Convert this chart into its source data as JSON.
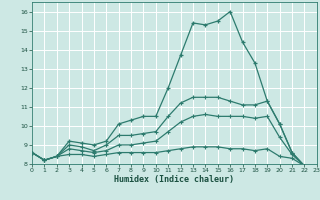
{
  "xlabel": "Humidex (Indice chaleur)",
  "background_color": "#cde8e4",
  "grid_color": "#ffffff",
  "line_color": "#2d7b6e",
  "x_values": [
    0,
    1,
    2,
    3,
    4,
    5,
    6,
    7,
    8,
    9,
    10,
    11,
    12,
    13,
    14,
    15,
    16,
    17,
    18,
    19,
    20,
    21,
    22,
    23
  ],
  "line1": [
    8.6,
    8.2,
    8.4,
    9.2,
    9.1,
    9.0,
    9.2,
    10.1,
    10.3,
    10.5,
    10.5,
    12.0,
    13.7,
    15.4,
    15.3,
    15.5,
    16.0,
    14.4,
    13.3,
    11.3,
    10.1,
    8.6,
    7.9,
    7.8
  ],
  "line2": [
    8.6,
    8.2,
    8.4,
    9.0,
    8.9,
    8.7,
    9.0,
    9.5,
    9.5,
    9.6,
    9.7,
    10.5,
    11.2,
    11.5,
    11.5,
    11.5,
    11.3,
    11.1,
    11.1,
    11.3,
    10.1,
    8.6,
    7.9,
    7.8
  ],
  "line3": [
    8.6,
    8.2,
    8.4,
    8.8,
    8.7,
    8.6,
    8.7,
    9.0,
    9.0,
    9.1,
    9.2,
    9.7,
    10.2,
    10.5,
    10.6,
    10.5,
    10.5,
    10.5,
    10.4,
    10.5,
    9.4,
    8.5,
    7.9,
    7.8
  ],
  "line4": [
    8.6,
    8.2,
    8.4,
    8.5,
    8.5,
    8.4,
    8.5,
    8.6,
    8.6,
    8.6,
    8.6,
    8.7,
    8.8,
    8.9,
    8.9,
    8.9,
    8.8,
    8.8,
    8.7,
    8.8,
    8.4,
    8.3,
    7.9,
    7.8
  ],
  "ylim": [
    8.0,
    16.5
  ],
  "xlim": [
    0,
    23
  ],
  "yticks": [
    8,
    9,
    10,
    11,
    12,
    13,
    14,
    15,
    16
  ],
  "xticks": [
    0,
    1,
    2,
    3,
    4,
    5,
    6,
    7,
    8,
    9,
    10,
    11,
    12,
    13,
    14,
    15,
    16,
    17,
    18,
    19,
    20,
    21,
    22,
    23
  ]
}
